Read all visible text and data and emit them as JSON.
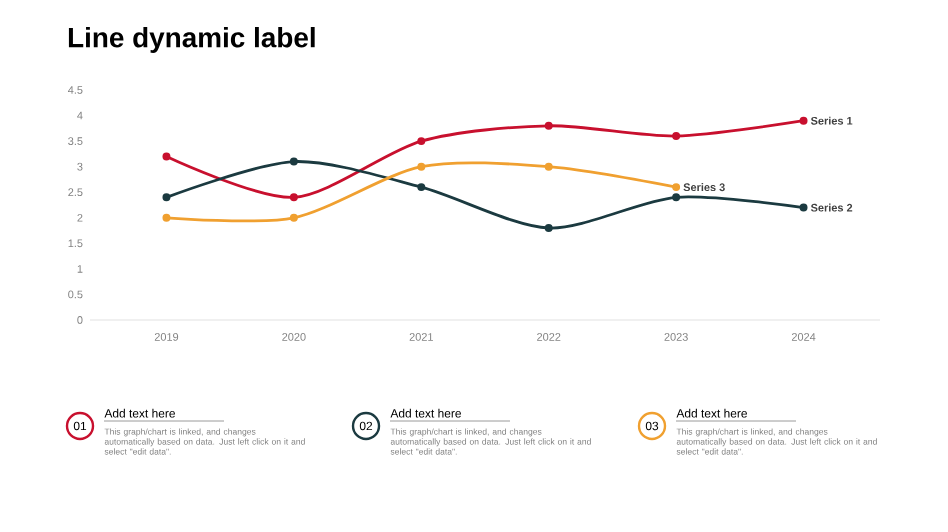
{
  "chart_data": {
    "type": "line",
    "title": "Line dynamic label",
    "categories": [
      "2019",
      "2020",
      "2021",
      "2022",
      "2023",
      "2024"
    ],
    "series": [
      {
        "name": "Series 1",
        "color": "#c8102e",
        "values": [
          3.2,
          2.4,
          3.5,
          3.8,
          3.6,
          3.9
        ]
      },
      {
        "name": "Series 2",
        "color": "#1b3a40",
        "values": [
          2.4,
          3.1,
          2.6,
          1.8,
          2.4,
          2.2
        ]
      },
      {
        "name": "Series 3",
        "color": "#f0a030",
        "values": [
          2.0,
          2.0,
          3.0,
          3.0,
          2.6,
          null
        ]
      }
    ],
    "ylim": [
      0,
      4.5
    ],
    "yticks": [
      0,
      0.5,
      1,
      1.5,
      2,
      2.5,
      3,
      3.5,
      4,
      4.5
    ],
    "grid": false,
    "legend": false,
    "marker": "circle",
    "line_style": "solid",
    "annotations": [
      "01",
      "Add text here",
      "This graph/chart is linked, and changes automatically based on data. Just left click on it and select \"edit data\".",
      "02",
      "Add text here",
      "This graph/chart is linked, and changes automatically based on data. Just left click on it and select \"edit data\".",
      "03",
      "Add text here",
      "This graph/chart is linked, and changes automatically based on data. Just left click on it and select \"edit data\"."
    ]
  }
}
